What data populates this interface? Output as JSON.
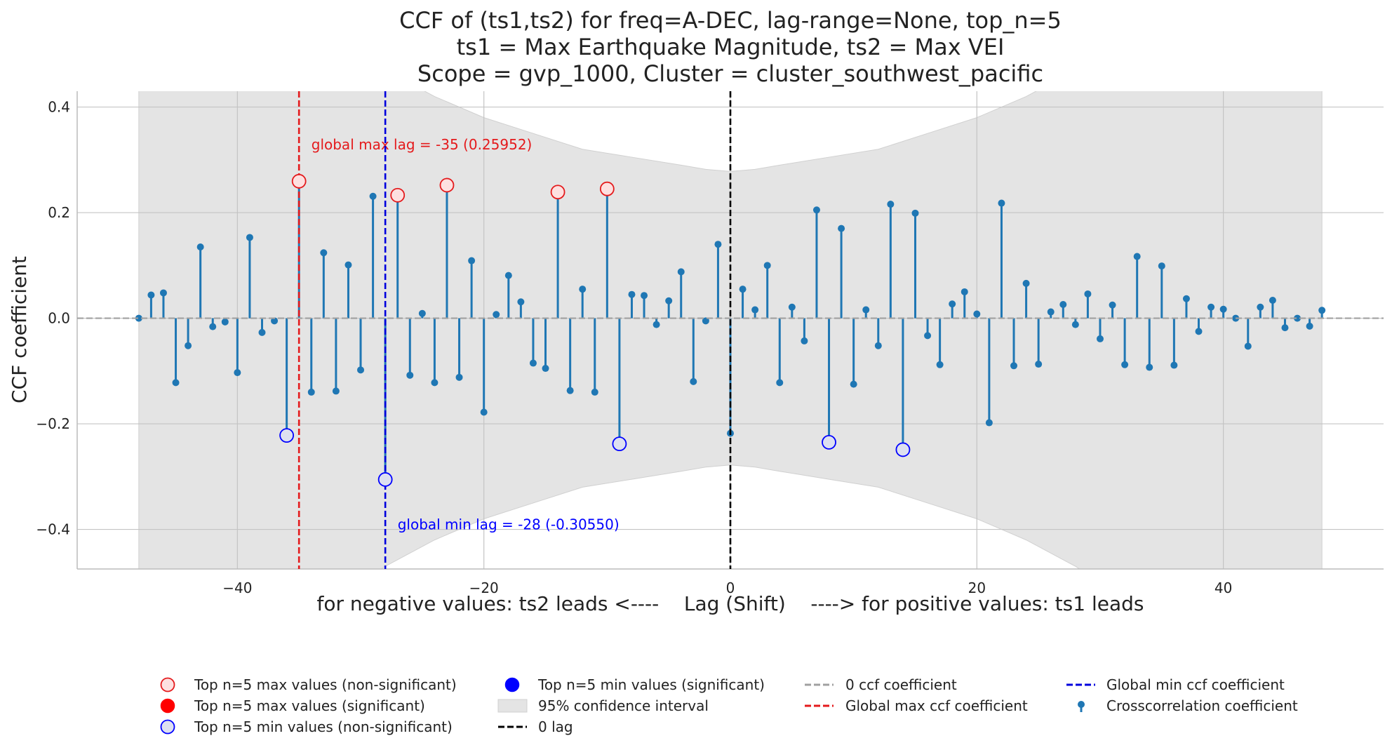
{
  "chart_data": {
    "type": "stem",
    "title_lines": [
      "CCF of (ts1,ts2) for freq=A-DEC, lag-range=None, top_n=5",
      "ts1 = Max Earthquake Magnitude, ts2 = Max VEI",
      "Scope = gvp_1000, Cluster = cluster_southwest_pacific"
    ],
    "xlabel": "for negative values: ts2 leads <----    Lag (Shift)    ----> for positive values: ts1 leads",
    "ylabel": "CCF coefficient",
    "xlim": [
      -53,
      53
    ],
    "ylim": [
      -0.475,
      0.43
    ],
    "xticks": [
      -40,
      -20,
      0,
      20,
      40
    ],
    "xtick_labels": [
      "−40",
      "−20",
      "0",
      "20",
      "40"
    ],
    "yticks": [
      -0.4,
      -0.2,
      0.0,
      0.2,
      0.4
    ],
    "ytick_labels": [
      "−0.4",
      "−0.2",
      "0.0",
      "0.2",
      "0.4"
    ],
    "grid": true,
    "colors": {
      "stem": "#1f77b4",
      "max_marker": "#e41a1c",
      "min_marker": "#0000ff",
      "zero_line": "#a0a0a0",
      "confidence_fill": "#e4e4e4",
      "global_max_line": "#e41a1c",
      "global_min_line": "#0000dd",
      "zero_lag_line": "#000000"
    },
    "lags": [
      -48,
      -47,
      -46,
      -45,
      -44,
      -43,
      -42,
      -41,
      -40,
      -39,
      -38,
      -37,
      -36,
      -35,
      -34,
      -33,
      -32,
      -31,
      -30,
      -29,
      -28,
      -27,
      -26,
      -25,
      -24,
      -23,
      -22,
      -21,
      -20,
      -19,
      -18,
      -17,
      -16,
      -15,
      -14,
      -13,
      -12,
      -11,
      -10,
      -9,
      -8,
      -7,
      -6,
      -5,
      -4,
      -3,
      -2,
      -1,
      0,
      1,
      2,
      3,
      4,
      5,
      6,
      7,
      8,
      9,
      10,
      11,
      12,
      13,
      14,
      15,
      16,
      17,
      18,
      19,
      20,
      21,
      22,
      23,
      24,
      25,
      26,
      27,
      28,
      29,
      30,
      31,
      32,
      33,
      34,
      35,
      36,
      37,
      38,
      39,
      40,
      41,
      42,
      43,
      44,
      45,
      46,
      47,
      48
    ],
    "values": [
      0.0,
      0.044,
      0.048,
      -0.122,
      -0.052,
      0.135,
      -0.016,
      -0.007,
      -0.103,
      0.153,
      -0.027,
      -0.005,
      -0.222,
      0.2595,
      -0.14,
      0.124,
      -0.138,
      0.101,
      -0.098,
      0.231,
      -0.3055,
      0.233,
      -0.108,
      0.009,
      -0.122,
      0.252,
      -0.112,
      0.109,
      -0.178,
      0.007,
      0.081,
      0.031,
      -0.085,
      -0.095,
      0.239,
      -0.137,
      0.055,
      -0.14,
      0.245,
      -0.238,
      0.045,
      0.043,
      -0.012,
      0.033,
      0.088,
      -0.12,
      -0.005,
      0.14,
      -0.218,
      0.055,
      0.016,
      0.1,
      -0.122,
      0.021,
      -0.043,
      0.205,
      -0.235,
      0.17,
      -0.125,
      0.016,
      -0.052,
      0.216,
      -0.249,
      0.199,
      -0.033,
      -0.088,
      0.027,
      0.05,
      0.008,
      -0.198,
      0.218,
      -0.09,
      0.066,
      -0.087,
      0.012,
      0.026,
      -0.012,
      0.046,
      -0.039,
      0.025,
      -0.088,
      0.117,
      -0.093,
      0.099,
      -0.089,
      0.037,
      -0.025,
      0.021,
      0.017,
      0.0,
      -0.053,
      0.021,
      0.034,
      -0.018,
      0.0,
      -0.015,
      0.015
    ],
    "confidence_interval": {
      "lags": [
        -48,
        -44,
        -40,
        -36,
        -32,
        -28,
        -24,
        -20,
        -16,
        -12,
        -8,
        -4,
        -2,
        0,
        2,
        4,
        8,
        12,
        16,
        20,
        24,
        28,
        32,
        36,
        40,
        44,
        48
      ],
      "upper": [
        0.8,
        0.74,
        0.67,
        0.6,
        0.53,
        0.47,
        0.42,
        0.38,
        0.35,
        0.32,
        0.305,
        0.29,
        0.282,
        0.278,
        0.282,
        0.29,
        0.305,
        0.32,
        0.35,
        0.38,
        0.42,
        0.47,
        0.53,
        0.6,
        0.67,
        0.74,
        0.8
      ]
    },
    "top_max": [
      {
        "lag": -35,
        "value": 0.2595
      },
      {
        "lag": -27,
        "value": 0.233
      },
      {
        "lag": -23,
        "value": 0.252
      },
      {
        "lag": -14,
        "value": 0.239
      },
      {
        "lag": -10,
        "value": 0.245
      }
    ],
    "top_min": [
      {
        "lag": -36,
        "value": -0.222
      },
      {
        "lag": -28,
        "value": -0.3055
      },
      {
        "lag": -9,
        "value": -0.238
      },
      {
        "lag": 8,
        "value": -0.235
      },
      {
        "lag": 14,
        "value": -0.249
      }
    ],
    "global_max": {
      "lag": -35,
      "label": "global max lag = -35 (0.25952)",
      "label_lag": -34,
      "label_value": 0.32
    },
    "global_min": {
      "lag": -28,
      "label": "global min lag = -28 (-0.30550)",
      "label_lag": -27,
      "label_value": -0.4
    },
    "legend": [
      {
        "key": "top-max-nonsig",
        "label": "Top n=5 max values (non-significant)"
      },
      {
        "key": "top-max-sig",
        "label": "Top n=5 max values (significant)"
      },
      {
        "key": "top-min-nonsig",
        "label": "Top n=5 min values (non-significant)"
      },
      {
        "key": "top-min-sig",
        "label": "Top n=5 min values (significant)"
      },
      {
        "key": "ci",
        "label": "95% confidence interval"
      },
      {
        "key": "zero-lag",
        "label": "0 lag"
      },
      {
        "key": "zero-ccf",
        "label": "0 ccf coefficient"
      },
      {
        "key": "global-max",
        "label": "Global max ccf coefficient"
      },
      {
        "key": "global-min",
        "label": "Global min ccf coefficient"
      },
      {
        "key": "ccf",
        "label": "Crosscorrelation coefficient"
      }
    ]
  }
}
